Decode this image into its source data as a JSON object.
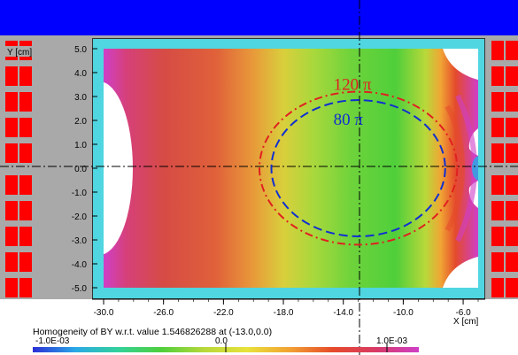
{
  "chart_data": {
    "type": "heatmap",
    "title": "",
    "xlabel": "X [cm]",
    "ylabel": "Y [cm]",
    "xlim": [
      -30.0,
      -5.0
    ],
    "ylim": [
      -5.0,
      5.0
    ],
    "x_ticks": [
      "-30.0",
      "-26.0",
      "-22.0",
      "-18.0",
      "-14.0",
      "-10.0",
      "-6.0"
    ],
    "x_tick_values": [
      -30,
      -26,
      -22,
      -18,
      -14,
      -10,
      -6
    ],
    "y_ticks": [
      "5.0",
      "4.0",
      "3.0",
      "2.0",
      "1.0",
      "0.0",
      "-1.0",
      "-2.0",
      "-3.0",
      "-4.0",
      "-5.0"
    ],
    "y_tick_values": [
      5,
      4,
      3,
      2,
      1,
      0,
      -1,
      -2,
      -3,
      -4,
      -5
    ],
    "reference_point": [
      -13.0,
      0.0
    ],
    "contours": [
      {
        "label": "120 π",
        "color": "#e02020",
        "style": "dash-dot",
        "center": [
          -13.0,
          0.0
        ],
        "rx": 6.6,
        "ry": 3.2
      },
      {
        "label": "80 π",
        "color": "#1030d0",
        "style": "dashed",
        "center": [
          -13.0,
          0.0
        ],
        "rx": 5.8,
        "ry": 2.85
      }
    ],
    "colorbar": {
      "min_label": "-1.0E-03",
      "mid_label": "0.0",
      "max_label": "1.0E-03",
      "colors": [
        "#2b2fd6",
        "#2aa9e6",
        "#33d19a",
        "#4fcf3b",
        "#b8d83a",
        "#e8e23a",
        "#f2a033",
        "#e64a2a",
        "#d83a66",
        "#cf3fc8"
      ]
    },
    "caption": "Homogeneity of BY w.r.t. value 1.546826288 at (-13.0,0.0)",
    "grid": false
  },
  "colors": {
    "top_bar": "#0000ff",
    "steel": "#a9a9a9",
    "frame": "#4fd6e0",
    "coil": "#ff0000"
  }
}
